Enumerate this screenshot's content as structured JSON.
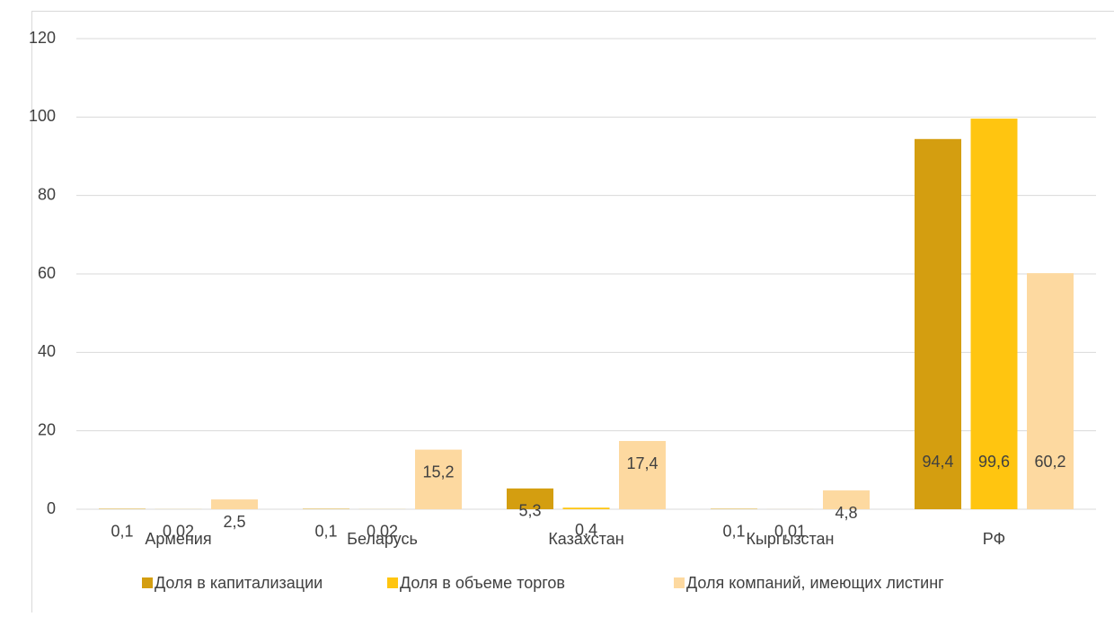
{
  "chart_data": {
    "type": "bar",
    "categories": [
      "Армения",
      "Беларусь",
      "Казахстан",
      "Кыргызстан",
      "РФ"
    ],
    "series": [
      {
        "name": "Доля в капитализации",
        "color": "#d49e10",
        "values": [
          0.1,
          0.1,
          5.3,
          0.1,
          94.4
        ],
        "value_labels": [
          "0,1",
          "0,1",
          "5,3",
          "0,1",
          "94,4"
        ]
      },
      {
        "name": "Доля в объеме торгов",
        "color": "#ffc510",
        "values": [
          0.02,
          0.02,
          0.4,
          0.01,
          99.6
        ],
        "value_labels": [
          "0,02",
          "0,02",
          "0,4",
          "0,01",
          "99,6"
        ]
      },
      {
        "name": "Доля компаний, имеющих листинг",
        "color": "#fdd9a0",
        "values": [
          2.5,
          15.2,
          17.4,
          4.8,
          60.2
        ],
        "value_labels": [
          "2,5",
          "15,2",
          "17,4",
          "4,8",
          "60,2"
        ]
      }
    ],
    "ylim": [
      0,
      120
    ],
    "yticks": [
      0,
      20,
      40,
      60,
      80,
      100,
      120
    ],
    "grid": true,
    "legend": "bottom"
  }
}
